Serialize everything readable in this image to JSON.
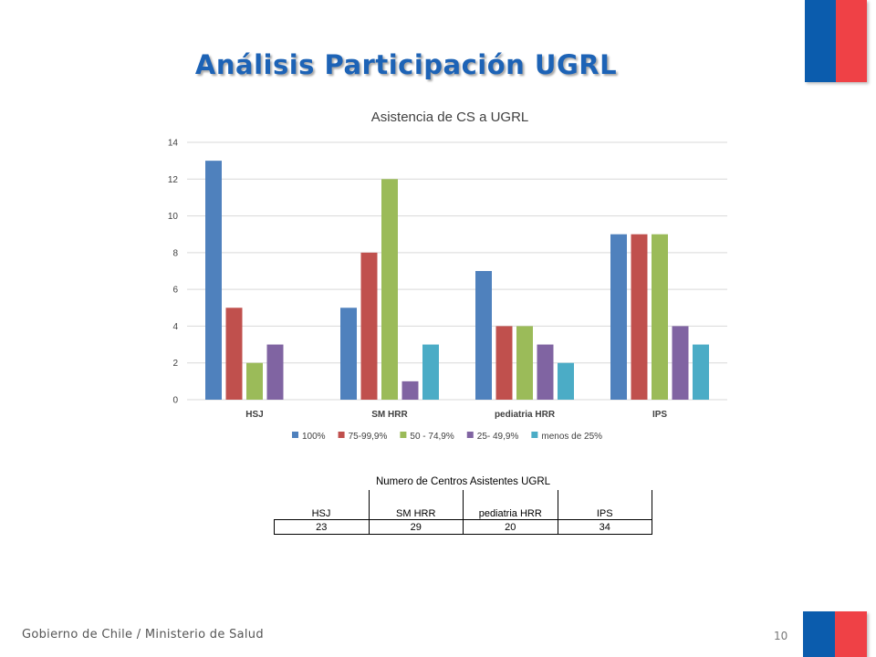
{
  "slide": {
    "title": "Análisis Participación  UGRL",
    "footer": "Gobierno de Chile / Ministerio de Salud",
    "page_number": "10"
  },
  "colors": {
    "flag_blue": "#0b5cad",
    "flag_red": "#ef4146",
    "title_blue": "#1d63b6"
  },
  "chart_data": {
    "type": "bar",
    "title": "Asistencia de CS a UGRL",
    "categories": [
      "HSJ",
      "SM HRR",
      "pediatria HRR",
      "IPS"
    ],
    "ylim": [
      0,
      14
    ],
    "yticks": [
      0,
      2,
      4,
      6,
      8,
      10,
      12,
      14
    ],
    "grid": true,
    "legend_position": "bottom",
    "series": [
      {
        "name": "100%",
        "color": "#4f81bd",
        "values": [
          13,
          5,
          7,
          9
        ]
      },
      {
        "name": "75-99,9%",
        "color": "#c0504d",
        "values": [
          5,
          8,
          4,
          9
        ]
      },
      {
        "name": "50 - 74,9%",
        "color": "#9bbb59",
        "values": [
          2,
          12,
          4,
          9
        ]
      },
      {
        "name": "25- 49,9%",
        "color": "#8064a2",
        "values": [
          3,
          1,
          3,
          4
        ]
      },
      {
        "name": "menos de 25%",
        "color": "#4bacc6",
        "values": [
          null,
          3,
          2,
          3
        ]
      }
    ]
  },
  "table": {
    "caption": "Numero de Centros Asistentes UGRL",
    "headers": [
      "HSJ",
      "SM HRR",
      "pediatria HRR",
      "IPS"
    ],
    "values": [
      "23",
      "29",
      "20",
      "34"
    ]
  }
}
